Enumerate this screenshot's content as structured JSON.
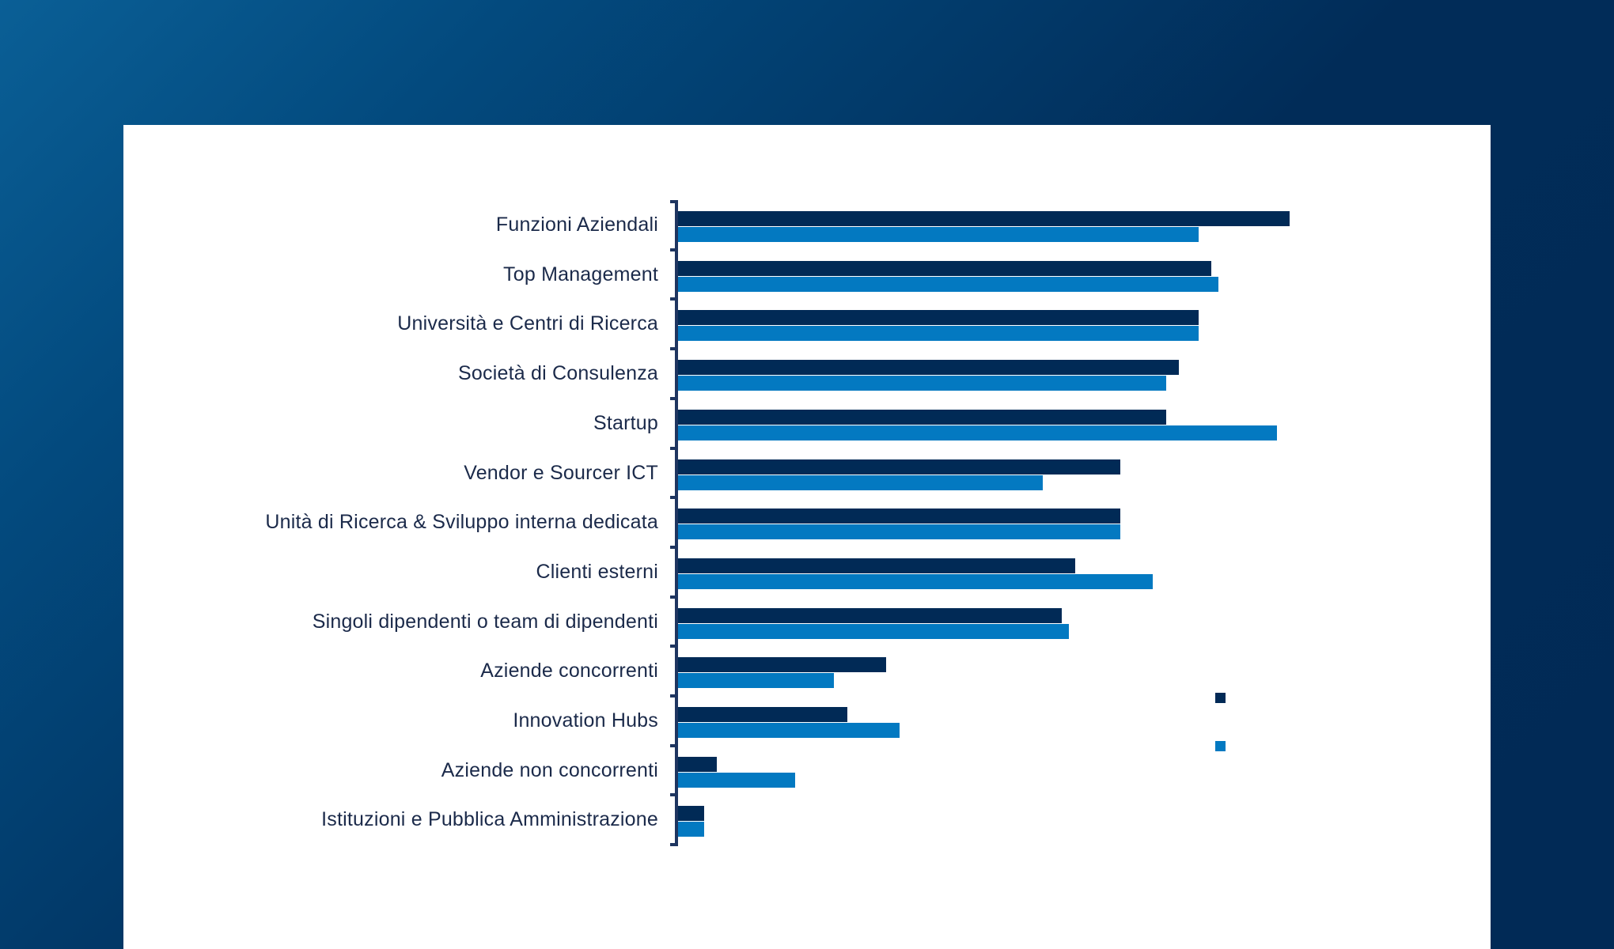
{
  "colors": {
    "background_start": "#0a5f96",
    "background_end": "#012a56",
    "card": "#ffffff",
    "series_dark": "#012a56",
    "series_light": "#0379c1",
    "axis": "#1e3560",
    "label_text": "#1b2a4a"
  },
  "legend": {
    "items": [
      {
        "label": "",
        "color": "#012a56"
      },
      {
        "label": "",
        "color": "#0379c1"
      }
    ]
  },
  "chart_data": {
    "type": "bar",
    "orientation": "horizontal",
    "title": "",
    "xlabel": "",
    "ylabel": "",
    "categories": [
      "Funzioni Aziendali",
      "Top Management",
      "Università e Centri di Ricerca",
      "Società di Consulenza",
      "Startup",
      "Vendor e Sourcer ICT",
      "Unità di Ricerca & Sviluppo interna dedicata",
      "Clienti esterni",
      "Singoli dipendenti o team di dipendenti",
      "Aziende concorrenti",
      "Innovation Hubs",
      "Aziende non concorrenti",
      "Istituzioni e Pubblica Amministrazione"
    ],
    "series": [
      {
        "name": "",
        "color": "#012a56",
        "values": [
          47,
          41,
          40,
          38.5,
          37.5,
          34,
          34,
          30.5,
          29.5,
          16,
          13,
          3,
          2
        ]
      },
      {
        "name": "",
        "color": "#0379c1",
        "values": [
          40,
          41.5,
          40,
          37.5,
          46,
          28,
          34,
          36.5,
          30,
          12,
          17,
          9,
          2
        ]
      }
    ],
    "value_axis_visible": false,
    "grid": false,
    "legend_position": "right (markers only, no visible labels)",
    "note": "Values estimated from bar lengths; no value axis or data labels shown."
  }
}
